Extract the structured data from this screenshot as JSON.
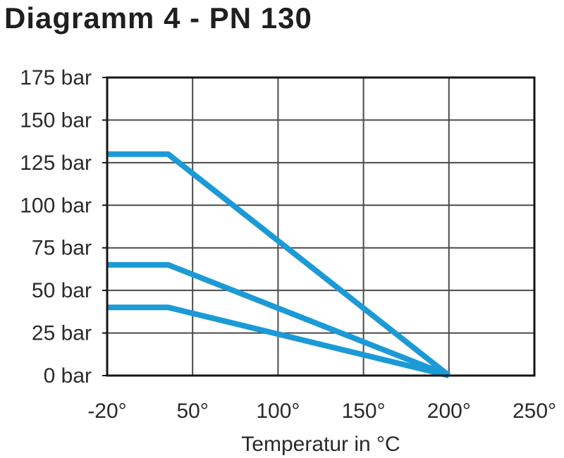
{
  "page": {
    "title": "Diagramm 4 - PN 130",
    "background": "#ffffff"
  },
  "chart_data": {
    "type": "line",
    "title": "Diagramm 4 - PN 130",
    "xlabel": "Temperatur in °C",
    "ylabel": "bar",
    "x_ticks": {
      "values": [
        -20,
        50,
        100,
        150,
        200,
        250
      ],
      "labels": [
        "-20°",
        "50°",
        "100°",
        "150°",
        "200°",
        "250°"
      ]
    },
    "y_ticks": {
      "values": [
        0,
        25,
        50,
        75,
        100,
        125,
        150,
        175
      ],
      "labels": [
        "0 bar",
        "25 bar",
        "50 bar",
        "75 bar",
        "100 bar",
        "125 bar",
        "150 bar",
        "175 bar"
      ]
    },
    "ylim": [
      0,
      175
    ],
    "grid": true,
    "legend": "none",
    "series": [
      {
        "name": "pressure-curve-130-bar",
        "points": [
          [
            -20,
            130
          ],
          [
            30,
            130
          ],
          [
            200,
            0
          ]
        ]
      },
      {
        "name": "pressure-curve-65-bar",
        "points": [
          [
            -20,
            65
          ],
          [
            30,
            65
          ],
          [
            200,
            0
          ]
        ]
      },
      {
        "name": "pressure-curve-40-bar",
        "points": [
          [
            -20,
            40
          ],
          [
            30,
            40
          ],
          [
            200,
            0
          ]
        ]
      }
    ],
    "colors": {
      "curve": "#1c9ad6",
      "grid": "#4a4a4a",
      "border": "#161616",
      "tick_label": "#2a2a2a",
      "title": "#1f1f1f"
    }
  }
}
